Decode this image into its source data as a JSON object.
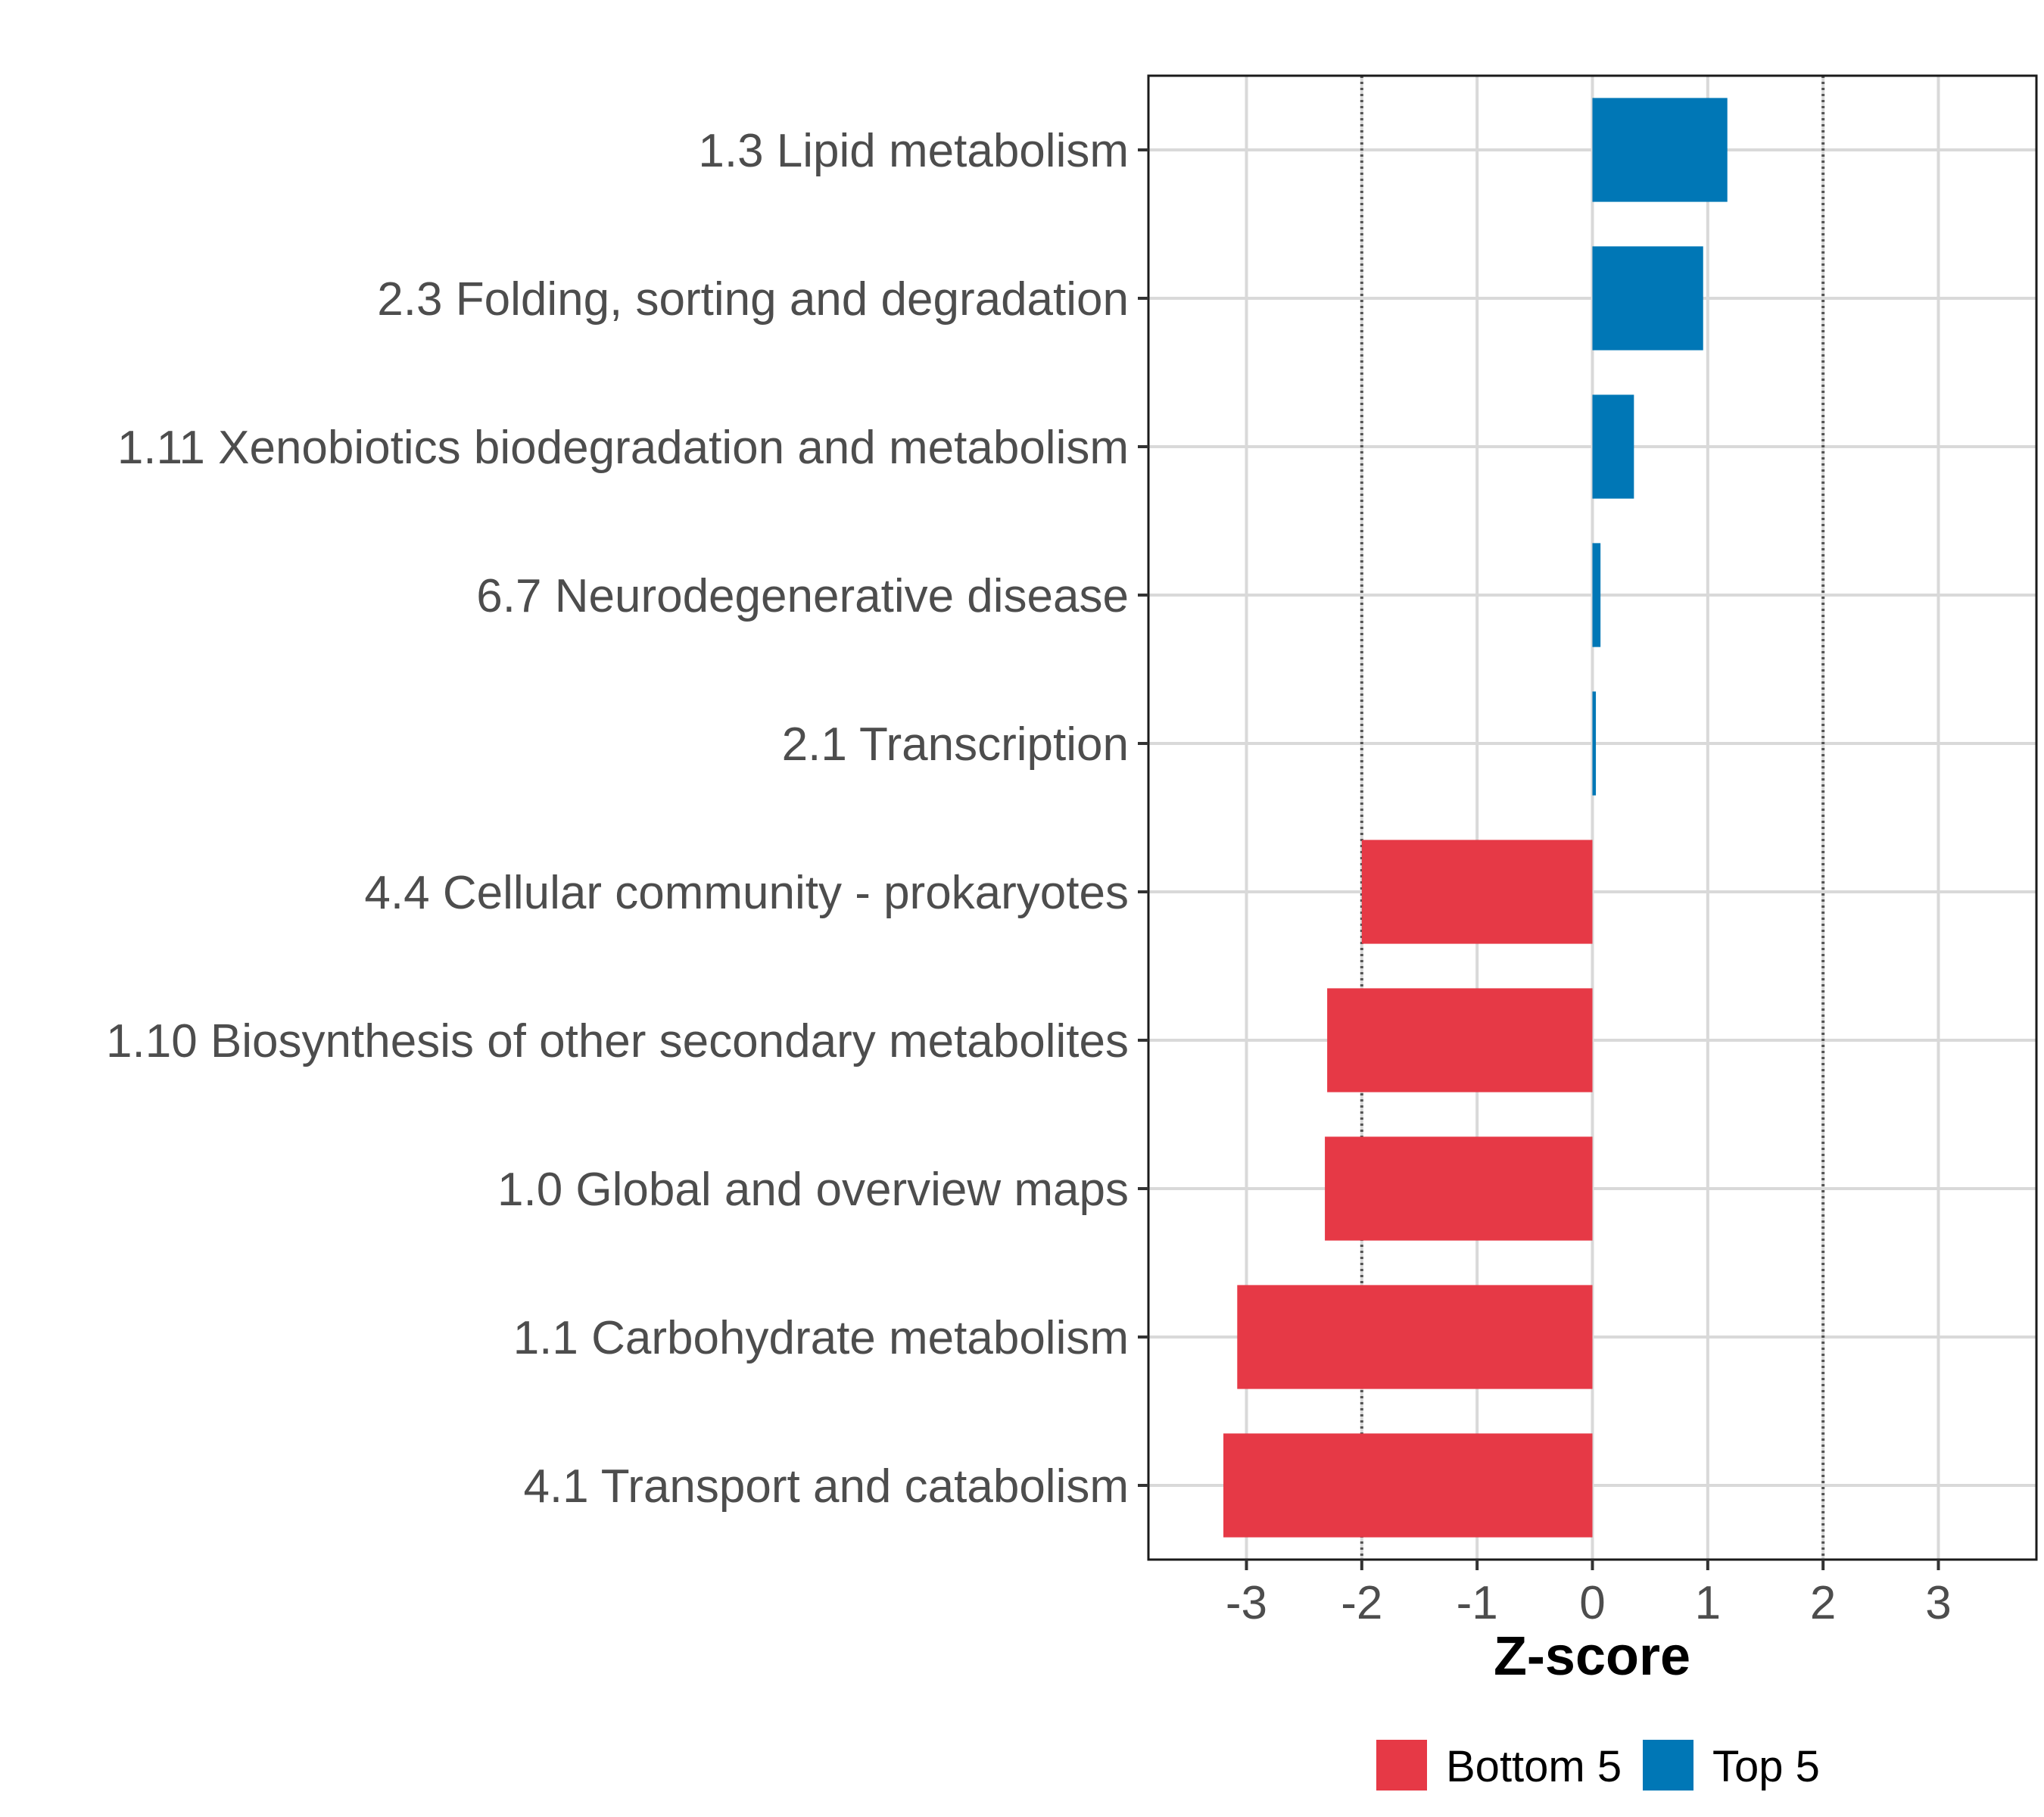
{
  "chart_data": {
    "type": "bar",
    "orientation": "horizontal",
    "categories": [
      "1.3 Lipid metabolism",
      "2.3 Folding, sorting and degradation",
      "1.11 Xenobiotics biodegradation and metabolism",
      "6.7 Neurodegenerative disease",
      "2.1 Transcription",
      "4.4 Cellular community - prokaryotes",
      "1.10 Biosynthesis of other secondary metabolites",
      "1.0 Global and overview maps",
      "1.1 Carbohydrate metabolism",
      "4.1 Transport and catabolism"
    ],
    "values": [
      1.17,
      0.96,
      0.36,
      0.07,
      0.03,
      -2.0,
      -2.3,
      -2.32,
      -3.08,
      -3.2
    ],
    "groups": [
      "Top 5",
      "Top 5",
      "Top 5",
      "Top 5",
      "Top 5",
      "Bottom 5",
      "Bottom 5",
      "Bottom 5",
      "Bottom 5",
      "Bottom 5"
    ],
    "xlabel": "Z-score",
    "ylabel": "",
    "xlim": [
      -3.85,
      3.85
    ],
    "xticks": [
      -3,
      -2,
      -1,
      0,
      1,
      2,
      3
    ],
    "xtick_labels": [
      "-3",
      "-2",
      "-1",
      "0",
      "1",
      "2",
      "3"
    ],
    "reference_lines": [
      -2,
      2
    ],
    "grid": true,
    "legend": {
      "position": "bottom",
      "entries": [
        {
          "label": "Bottom 5",
          "color": "#E63946"
        },
        {
          "label": "Top 5",
          "color": "#0077B6"
        }
      ]
    },
    "colors": {
      "Bottom 5": "#E63946",
      "Top 5": "#0077B6",
      "grid": "#d9d9d9",
      "reference": "#555555"
    }
  }
}
